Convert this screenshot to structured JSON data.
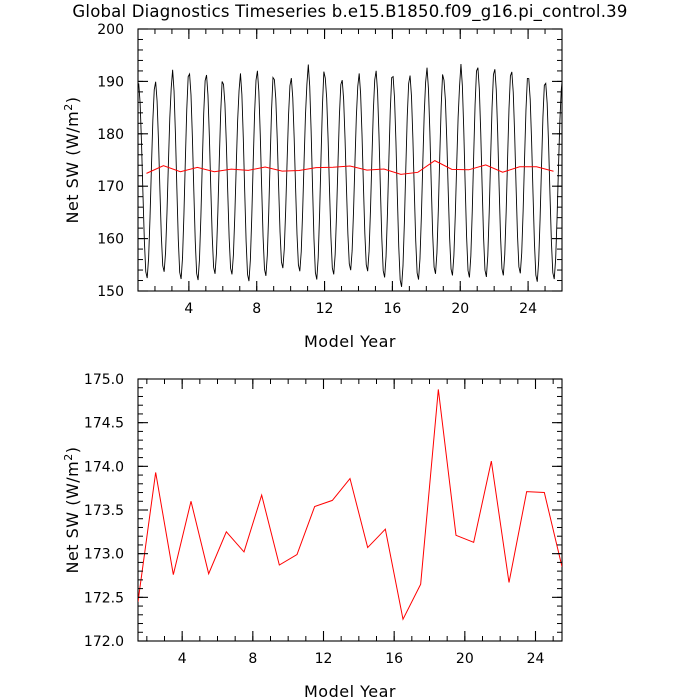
{
  "title": "Global Diagnostics Timeseries b.e15.B1850.f09_g16.pi_control.39",
  "colors": {
    "monthly": "#000000",
    "annual": "#ff0000",
    "axis": "#000000"
  },
  "chart_data": [
    {
      "type": "line",
      "xlabel": "Model Year",
      "ylabel": "Net SW (W/m2)",
      "ylabel_base": "Net SW (W/m",
      "ylabel_sup": "2",
      "ylabel_close": ")",
      "xlim": [
        1,
        26
      ],
      "ylim": [
        150,
        200
      ],
      "xticks": [
        4,
        8,
        12,
        16,
        20,
        24
      ],
      "yticks": [
        150,
        160,
        170,
        180,
        190,
        200
      ],
      "grid": false,
      "series": [
        {
          "color": "#000000",
          "style": "monthly",
          "seasonal_cycle": {
            "years_start": 1,
            "years_end": 26,
            "annual_max": [
              189.8,
              190.1,
              192.4,
              191.6,
              191.4,
              189.6,
              191.7,
              192.2,
              190.5,
              190.8,
              193.4,
              190.8,
              190.4,
              191.7,
              192.2,
              191.1,
              191.3,
              192.8,
              190.4,
              193.5,
              192.8,
              192.5,
              192.0,
              190.7,
              189.8,
              191.5
            ],
            "annual_min": [
              152.3,
              153.5,
              152.1,
              151.9,
              153.1,
              153.0,
              151.7,
              152.7,
              154.2,
              153.6,
              152.0,
              153.0,
              153.8,
              153.6,
              152.4,
              150.6,
              152.0,
              153.1,
              152.8,
              152.4,
              152.5,
              152.8,
              153.2,
              151.6,
              152.1,
              152.0
            ]
          }
        },
        {
          "color": "#ff0000",
          "style": "annual",
          "x": [
            1.5,
            2.5,
            3.5,
            4.5,
            5.5,
            6.5,
            7.5,
            8.5,
            9.5,
            10.5,
            11.5,
            12.5,
            13.5,
            14.5,
            15.5,
            16.5,
            17.5,
            18.5,
            19.5,
            20.5,
            21.5,
            22.5,
            23.5,
            24.5,
            25.5
          ],
          "values": [
            172.45,
            173.93,
            172.76,
            173.6,
            172.77,
            173.25,
            173.02,
            173.67,
            172.87,
            172.99,
            173.54,
            173.61,
            173.86,
            173.07,
            173.28,
            172.25,
            172.65,
            174.88,
            173.21,
            173.13,
            174.06,
            172.67,
            173.71,
            173.7,
            172.85
          ]
        }
      ]
    },
    {
      "type": "line",
      "xlabel": "Model Year",
      "ylabel": "Net SW (W/m2)",
      "ylabel_base": "Net SW (W/m",
      "ylabel_sup": "2",
      "ylabel_close": ")",
      "xlim": [
        1.5,
        25.5
      ],
      "ylim": [
        172.0,
        175.0
      ],
      "xticks": [
        4,
        8,
        12,
        16,
        20,
        24
      ],
      "yticks": [
        172.0,
        172.5,
        173.0,
        173.5,
        174.0,
        174.5,
        175.0
      ],
      "ytick_labels": [
        "172.0",
        "172.5",
        "173.0",
        "173.5",
        "174.0",
        "174.5",
        "175.0"
      ],
      "grid": false,
      "series": [
        {
          "color": "#ff0000",
          "style": "annual",
          "x": [
            1.5,
            2.5,
            3.5,
            4.5,
            5.5,
            6.5,
            7.5,
            8.5,
            9.5,
            10.5,
            11.5,
            12.5,
            13.5,
            14.5,
            15.5,
            16.5,
            17.5,
            18.5,
            19.5,
            20.5,
            21.5,
            22.5,
            23.5,
            24.5,
            25.5
          ],
          "values": [
            172.45,
            173.93,
            172.76,
            173.6,
            172.77,
            173.25,
            173.02,
            173.67,
            172.87,
            172.99,
            173.54,
            173.61,
            173.86,
            173.07,
            173.28,
            172.25,
            172.65,
            174.88,
            173.21,
            173.13,
            174.06,
            172.67,
            173.71,
            173.7,
            172.85
          ]
        }
      ]
    }
  ]
}
